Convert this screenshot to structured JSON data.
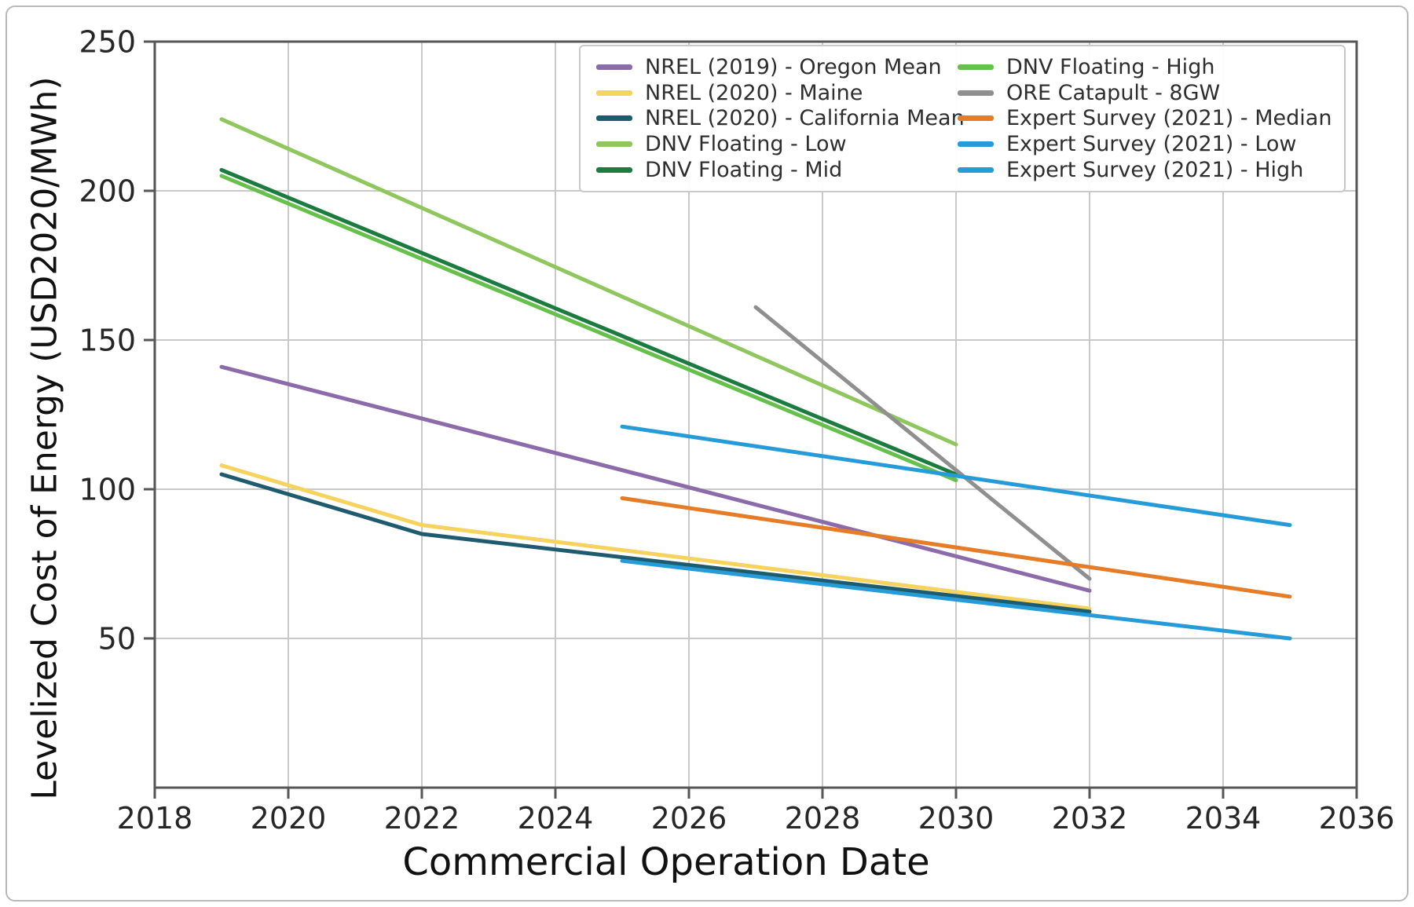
{
  "axes": {
    "xlabel": "Commercial Operation Date",
    "ylabel": "Levelized Cost of Energy (USD2020/MWh)"
  },
  "chart_data": {
    "type": "line",
    "title": "",
    "xlabel": "Commercial Operation Date",
    "ylabel": "Levelized Cost of Energy (USD2020/MWh)",
    "xlim": [
      2018,
      2036
    ],
    "ylim": [
      0,
      250
    ],
    "xticks": [
      2018,
      2020,
      2022,
      2024,
      2026,
      2028,
      2030,
      2032,
      2034,
      2036
    ],
    "yticks": [
      50,
      100,
      150,
      200,
      250
    ],
    "grid": true,
    "grid_color": "#c9c9c9",
    "spine_color": "#565656",
    "tick_label_color": "#262626",
    "legend_position": "upper right inside",
    "series": [
      {
        "name": "NREL (2019) - Oregon Mean",
        "color": "#8c6bab",
        "points": [
          [
            2019,
            141
          ],
          [
            2032,
            66
          ]
        ]
      },
      {
        "name": "NREL (2020) - Maine",
        "color": "#f6d35f",
        "points": [
          [
            2019,
            108
          ],
          [
            2022,
            88
          ],
          [
            2032,
            60
          ]
        ]
      },
      {
        "name": "NREL (2020) - California Mean",
        "color": "#1f5b6e",
        "points": [
          [
            2019,
            105
          ],
          [
            2022,
            85
          ],
          [
            2032,
            59
          ]
        ]
      },
      {
        "name": "DNV Floating - Low",
        "color": "#90c65e",
        "points": [
          [
            2019,
            224
          ],
          [
            2030,
            115
          ]
        ]
      },
      {
        "name": "DNV Floating - High",
        "color": "#68c04c",
        "points": [
          [
            2019,
            205
          ],
          [
            2030,
            103
          ]
        ]
      },
      {
        "name": "DNV Floating - Mid",
        "color": "#1c7c40",
        "points": [
          [
            2019,
            207
          ],
          [
            2030,
            105
          ]
        ]
      },
      {
        "name": "ORE Catapult - 8GW",
        "color": "#8f8f8f",
        "points": [
          [
            2027,
            161
          ],
          [
            2032,
            70
          ]
        ]
      },
      {
        "name": "Expert Survey (2021) - Median",
        "color": "#e57c28",
        "points": [
          [
            2025,
            97
          ],
          [
            2035,
            64
          ]
        ]
      },
      {
        "name": "Expert Survey (2021) - Low",
        "color": "#259bd8",
        "points": [
          [
            2025,
            76
          ],
          [
            2035,
            50
          ]
        ]
      },
      {
        "name": "Expert Survey (2021) - High",
        "color": "#259bd8",
        "points": [
          [
            2025,
            121
          ],
          [
            2035,
            88
          ]
        ]
      }
    ],
    "legend_columns": [
      [
        "NREL (2019) - Oregon Mean",
        "NREL (2020) - Maine",
        "NREL (2020) - California Mean",
        "DNV Floating - Low",
        "DNV Floating - Mid"
      ],
      [
        "DNV Floating - High",
        "ORE Catapult - 8GW",
        "Expert Survey (2021) - Median",
        "Expert Survey (2021) - Low",
        "Expert Survey (2021) - High"
      ]
    ]
  }
}
